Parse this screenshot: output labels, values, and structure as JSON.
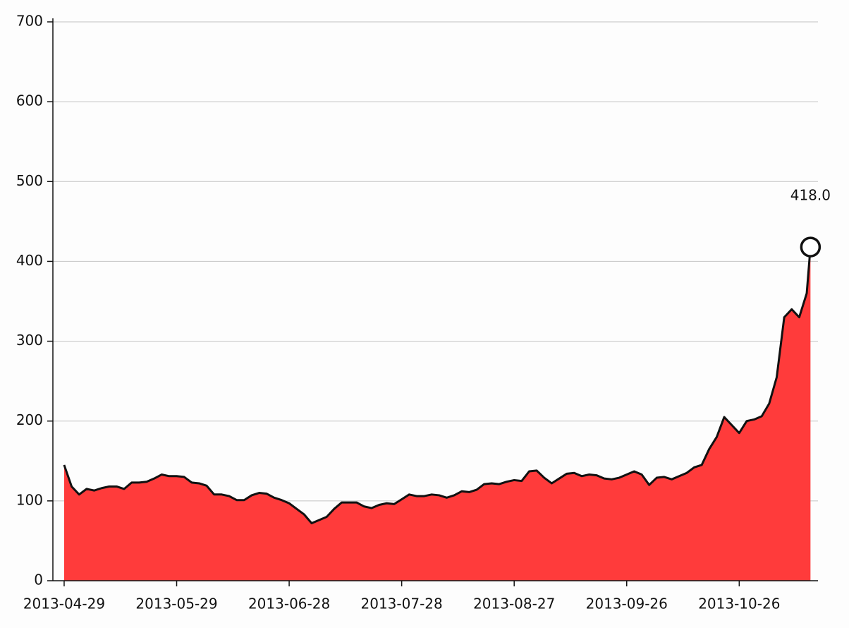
{
  "chart_data": {
    "type": "area",
    "x": [
      "2013-04-29",
      "2013-05-01",
      "2013-05-03",
      "2013-05-05",
      "2013-05-07",
      "2013-05-09",
      "2013-05-11",
      "2013-05-13",
      "2013-05-15",
      "2013-05-17",
      "2013-05-19",
      "2013-05-21",
      "2013-05-23",
      "2013-05-25",
      "2013-05-27",
      "2013-05-29",
      "2013-05-31",
      "2013-06-02",
      "2013-06-04",
      "2013-06-06",
      "2013-06-08",
      "2013-06-10",
      "2013-06-12",
      "2013-06-14",
      "2013-06-16",
      "2013-06-18",
      "2013-06-20",
      "2013-06-22",
      "2013-06-24",
      "2013-06-26",
      "2013-06-28",
      "2013-06-30",
      "2013-07-02",
      "2013-07-04",
      "2013-07-06",
      "2013-07-08",
      "2013-07-10",
      "2013-07-12",
      "2013-07-14",
      "2013-07-16",
      "2013-07-18",
      "2013-07-20",
      "2013-07-22",
      "2013-07-24",
      "2013-07-26",
      "2013-07-28",
      "2013-07-30",
      "2013-08-01",
      "2013-08-03",
      "2013-08-05",
      "2013-08-07",
      "2013-08-09",
      "2013-08-11",
      "2013-08-13",
      "2013-08-15",
      "2013-08-17",
      "2013-08-19",
      "2013-08-21",
      "2013-08-23",
      "2013-08-25",
      "2013-08-27",
      "2013-08-29",
      "2013-08-31",
      "2013-09-02",
      "2013-09-04",
      "2013-09-06",
      "2013-09-08",
      "2013-09-10",
      "2013-09-12",
      "2013-09-14",
      "2013-09-16",
      "2013-09-18",
      "2013-09-20",
      "2013-09-22",
      "2013-09-24",
      "2013-09-26",
      "2013-09-28",
      "2013-09-30",
      "2013-10-02",
      "2013-10-04",
      "2013-10-06",
      "2013-10-08",
      "2013-10-10",
      "2013-10-12",
      "2013-10-14",
      "2013-10-16",
      "2013-10-18",
      "2013-10-20",
      "2013-10-22",
      "2013-10-24",
      "2013-10-26",
      "2013-10-28",
      "2013-10-30",
      "2013-11-01",
      "2013-11-03",
      "2013-11-05",
      "2013-11-07",
      "2013-11-09",
      "2013-11-11",
      "2013-11-13",
      "2013-11-14"
    ],
    "values": [
      145,
      118,
      108,
      115,
      113,
      116,
      118,
      118,
      115,
      123,
      123,
      124,
      128,
      133,
      131,
      131,
      130,
      123,
      122,
      119,
      108,
      108,
      106,
      101,
      101,
      107,
      110,
      109,
      104,
      101,
      97,
      90,
      83,
      72,
      76,
      80,
      90,
      98,
      98,
      98,
      93,
      91,
      95,
      97,
      96,
      102,
      108,
      106,
      106,
      108,
      107,
      104,
      107,
      112,
      111,
      114,
      121,
      122,
      121,
      124,
      126,
      125,
      137,
      138,
      129,
      122,
      128,
      134,
      135,
      131,
      133,
      132,
      128,
      127,
      129,
      133,
      137,
      133,
      120,
      129,
      130,
      127,
      131,
      135,
      142,
      145,
      165,
      180,
      205,
      195,
      185,
      200,
      202,
      206,
      222,
      255,
      330,
      340,
      330,
      360,
      418
    ],
    "color": "#ff3b3b",
    "line_color": "#111111",
    "annotation": "418.0",
    "xlim": [
      "2013-04-26",
      "2013-11-16"
    ],
    "xticks": [
      "2013-04-29",
      "2013-05-29",
      "2013-06-28",
      "2013-07-28",
      "2013-08-27",
      "2013-09-26",
      "2013-10-26"
    ],
    "ylim": [
      0,
      700
    ],
    "yticks": [
      0,
      100,
      200,
      300,
      400,
      500,
      600,
      700
    ],
    "grid": true
  }
}
